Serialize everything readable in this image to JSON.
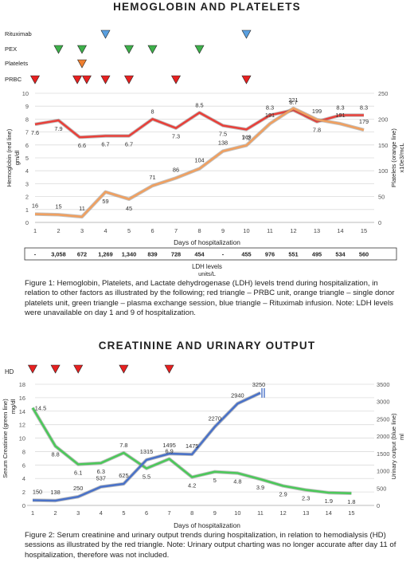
{
  "chart_data": [
    {
      "type": "line",
      "title": "HEMOGLOBIN AND PLATELETS",
      "xlabel": "Days of hospitalization",
      "ylabel": "Hemoglobin (red line) gm/dl",
      "y2label": "Platelets (orange line) x10e3/mcL",
      "ylim": [
        0,
        10
      ],
      "y2lim": [
        0,
        250
      ],
      "categories": [
        "1",
        "2",
        "3",
        "4",
        "5",
        "6",
        "7",
        "8",
        "9",
        "10",
        "11",
        "12",
        "13",
        "14",
        "15"
      ],
      "series": [
        {
          "name": "Hemoglobin (red line)",
          "color": "#e8403a",
          "axis": "left",
          "x": [
            1,
            2,
            2.9,
            3,
            4,
            5,
            6,
            7,
            8,
            9,
            10,
            11,
            12,
            13,
            14,
            15
          ],
          "values": [
            7.6,
            7.9,
            6.6,
            6.6,
            6.7,
            6.7,
            8,
            7.3,
            8.5,
            7.5,
            7.2,
            8.3,
            8.7,
            7.8,
            8.3,
            8.3
          ],
          "label_x": [
            1,
            2,
            3,
            4,
            5,
            6,
            7,
            8,
            9,
            10,
            11,
            12,
            13,
            14,
            15
          ],
          "labels": [
            "7.6",
            "7.9",
            "6.6",
            "6.7",
            "6.7",
            "8",
            "7.3",
            "8.5",
            "7.5",
            "7.2",
            "8.3",
            "8.7",
            "7.8",
            "8.3",
            "8.3"
          ]
        },
        {
          "name": "Platelets (orange line)",
          "color": "#f0a060",
          "axis": "right",
          "x": [
            1,
            2,
            3,
            4,
            5,
            6,
            7,
            8,
            9,
            10,
            11,
            12,
            13,
            14,
            15
          ],
          "values": [
            16,
            15,
            11,
            59,
            45,
            71,
            86,
            104,
            138,
            149,
            191,
            221,
            199,
            191,
            179
          ],
          "labels": [
            "16",
            "15",
            "11",
            "59",
            "45",
            "71",
            "86",
            "104",
            "138",
            "149",
            "191",
            "221",
            "199",
            "191",
            "179"
          ]
        }
      ],
      "events": [
        {
          "name": "Rituximab",
          "color": "#5aa0e0",
          "days": [
            4,
            10
          ]
        },
        {
          "name": "PEX",
          "color": "#3db04a",
          "days": [
            2,
            3,
            5,
            6,
            8
          ]
        },
        {
          "name": "Platelets",
          "color": "#f08030",
          "days": [
            3
          ]
        },
        {
          "name": "PRBC",
          "color": "#e82020",
          "days": [
            1,
            2.8,
            3.2,
            4,
            5,
            7,
            10
          ]
        }
      ],
      "table_title": "LDH levels",
      "table_units": "units/L",
      "table_values": [
        "-",
        "3,058",
        "672",
        "1,269",
        "1,340",
        "839",
        "728",
        "454",
        "-",
        "455",
        "976",
        "551",
        "495",
        "534",
        "560"
      ],
      "caption": "Figure 1: Hemoglobin, Platelets, and Lactate dehydrogenase (LDH) levels trend during hospitalization, in relation to other factors as illustrated by the following; red triangle – PRBC unit, orange triangle – single donor platelets unit, green triangle – plasma exchange session, blue triangle – Rituximab infusion. Note: LDH levels were unavailable on day 1 and 9 of hospitalization."
    },
    {
      "type": "line",
      "title": "CREATININE AND URINARY OUTPUT",
      "xlabel": "Days of hospitalization",
      "ylabel": "Serum Creatinine (green line) mg/dl",
      "y2label": "Urinary output (blue line) ml",
      "ylim": [
        0,
        18
      ],
      "y2lim": [
        0,
        3500
      ],
      "categories": [
        "1",
        "2",
        "3",
        "4",
        "5",
        "6",
        "7",
        "8",
        "9",
        "10",
        "11",
        "12",
        "13",
        "14",
        "15"
      ],
      "series": [
        {
          "name": "Serum Creatinine (green line)",
          "color": "#4cc85a",
          "axis": "left",
          "x": [
            1,
            2,
            3,
            4,
            5,
            6,
            7,
            8,
            9,
            10,
            11,
            12,
            13,
            14,
            15
          ],
          "values": [
            14.5,
            8.8,
            6.1,
            6.3,
            7.8,
            5.5,
            6.9,
            4.2,
            5,
            4.8,
            3.9,
            2.9,
            2.3,
            1.9,
            1.8
          ],
          "labels": [
            "14.5",
            "8.8",
            "6.1",
            "6.3",
            "7.8",
            "5.5",
            "6.9",
            "4.2",
            "5",
            "4.8",
            "3.9",
            "2.9",
            "2.3",
            "1.9",
            "1.8"
          ]
        },
        {
          "name": "Urinary output (blue line)",
          "color": "#4a72c8",
          "axis": "right",
          "x": [
            1,
            2,
            3,
            4,
            5,
            6,
            7,
            8,
            9,
            10,
            11
          ],
          "values": [
            150,
            138,
            250,
            537,
            625,
            1315,
            1495,
            1475,
            2270,
            2940,
            3250
          ],
          "labels": [
            "150",
            "138",
            "250",
            "537",
            "625",
            "1315",
            "1495",
            "1475",
            "2270",
            "2940",
            "3250"
          ]
        }
      ],
      "events": [
        {
          "name": "HD",
          "color": "#e82020",
          "days": [
            1,
            2,
            3,
            5,
            7
          ]
        }
      ],
      "caption": "Figure 2: Serum creatinine and urinary output trends during hospitalization, in relation to hemodialysis (HD) sessions as illustrated by the red triangle. Note: Urinary output charting was no longer accurate after day 11 of hospitalization, therefore was not included."
    }
  ]
}
